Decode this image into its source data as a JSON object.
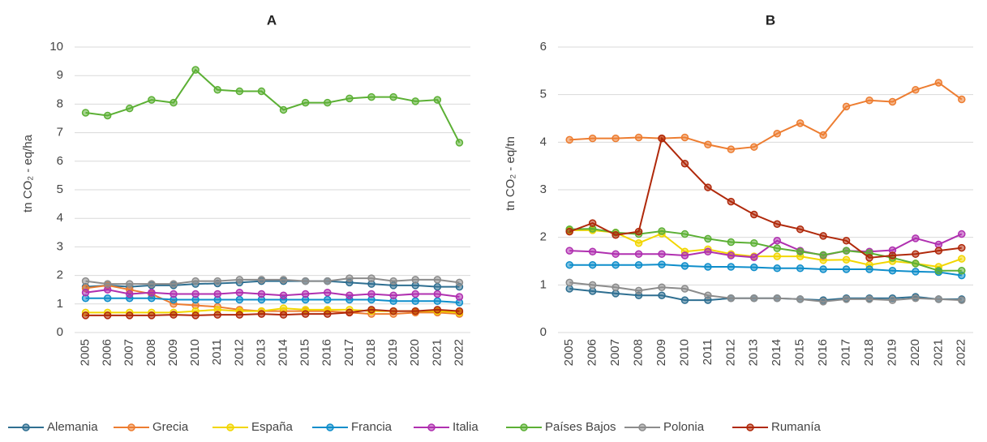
{
  "chart_data": [
    {
      "type": "line",
      "title": "A",
      "y_label": "tn CO₂ - eq/ha",
      "categories": [
        "2005",
        "2006",
        "2007",
        "2008",
        "2009",
        "2010",
        "2011",
        "2012",
        "2013",
        "2014",
        "2015",
        "2016",
        "2017",
        "2018",
        "2019",
        "2020",
        "2021",
        "2022"
      ],
      "ylim": [
        0,
        10
      ],
      "yticks": [
        0,
        1,
        2,
        3,
        4,
        5,
        6,
        7,
        8,
        9,
        10
      ],
      "grid": true,
      "series": [
        {
          "name": "Alemania",
          "color": "#2f6f91",
          "values": [
            1.6,
            1.65,
            1.6,
            1.65,
            1.65,
            1.7,
            1.72,
            1.75,
            1.8,
            1.8,
            1.8,
            1.8,
            1.75,
            1.7,
            1.65,
            1.65,
            1.6,
            1.6
          ]
        },
        {
          "name": "Grecia",
          "color": "#ed7d31",
          "values": [
            1.55,
            1.65,
            1.5,
            1.35,
            1.0,
            0.95,
            0.9,
            0.8,
            0.75,
            0.75,
            0.75,
            0.75,
            0.7,
            0.65,
            0.65,
            0.7,
            0.7,
            0.65
          ]
        },
        {
          "name": "España",
          "color": "#f2d600",
          "values": [
            0.7,
            0.7,
            0.7,
            0.7,
            0.7,
            0.75,
            0.8,
            0.75,
            0.75,
            0.85,
            0.8,
            0.8,
            0.8,
            0.75,
            0.75,
            0.75,
            0.75,
            0.7
          ]
        },
        {
          "name": "Francia",
          "color": "#0f8ecb",
          "values": [
            1.2,
            1.2,
            1.2,
            1.2,
            1.15,
            1.15,
            1.15,
            1.15,
            1.15,
            1.15,
            1.15,
            1.15,
            1.15,
            1.15,
            1.1,
            1.1,
            1.1,
            1.05
          ]
        },
        {
          "name": "Italia",
          "color": "#b030b0",
          "values": [
            1.4,
            1.5,
            1.35,
            1.4,
            1.35,
            1.35,
            1.35,
            1.4,
            1.35,
            1.3,
            1.35,
            1.4,
            1.3,
            1.35,
            1.3,
            1.35,
            1.35,
            1.25
          ]
        },
        {
          "name": "Países Bajos",
          "color": "#5cb035",
          "values": [
            7.7,
            7.6,
            7.85,
            8.15,
            8.05,
            9.2,
            8.5,
            8.45,
            8.45,
            7.8,
            8.05,
            8.05,
            8.2,
            8.25,
            8.25,
            8.1,
            8.15,
            6.65
          ]
        },
        {
          "name": "Polonia",
          "color": "#8c8c8c",
          "values": [
            1.8,
            1.7,
            1.7,
            1.7,
            1.7,
            1.8,
            1.8,
            1.85,
            1.85,
            1.85,
            1.8,
            1.8,
            1.9,
            1.9,
            1.8,
            1.85,
            1.85,
            1.75
          ]
        },
        {
          "name": "Rumanía",
          "color": "#b0290b",
          "values": [
            0.6,
            0.6,
            0.6,
            0.6,
            0.62,
            0.6,
            0.62,
            0.62,
            0.65,
            0.62,
            0.65,
            0.65,
            0.7,
            0.8,
            0.75,
            0.75,
            0.8,
            0.75
          ]
        }
      ]
    },
    {
      "type": "line",
      "title": "B",
      "y_label": "tn CO₂ - eq/tn",
      "categories": [
        "2005",
        "2006",
        "2007",
        "2008",
        "2009",
        "2010",
        "2011",
        "2012",
        "2013",
        "2014",
        "2015",
        "2016",
        "2017",
        "2018",
        "2019",
        "2020",
        "2021",
        "2022"
      ],
      "ylim": [
        0,
        6
      ],
      "yticks": [
        0,
        1,
        2,
        3,
        4,
        5,
        6
      ],
      "grid": true,
      "series": [
        {
          "name": "Alemania",
          "color": "#2f6f91",
          "values": [
            0.92,
            0.87,
            0.82,
            0.78,
            0.78,
            0.68,
            0.68,
            0.72,
            0.72,
            0.72,
            0.7,
            0.68,
            0.72,
            0.72,
            0.72,
            0.75,
            0.7,
            0.7
          ]
        },
        {
          "name": "Grecia",
          "color": "#ed7d31",
          "values": [
            4.05,
            4.08,
            4.08,
            4.1,
            4.08,
            4.1,
            3.95,
            3.85,
            3.9,
            4.18,
            4.4,
            4.15,
            4.75,
            4.88,
            4.85,
            5.1,
            5.25,
            4.9
          ]
        },
        {
          "name": "España",
          "color": "#f2d600",
          "values": [
            2.15,
            2.15,
            2.1,
            1.88,
            2.08,
            1.7,
            1.75,
            1.65,
            1.6,
            1.6,
            1.6,
            1.52,
            1.53,
            1.42,
            1.5,
            1.45,
            1.38,
            1.55
          ]
        },
        {
          "name": "Francia",
          "color": "#0f8ecb",
          "values": [
            1.42,
            1.42,
            1.42,
            1.42,
            1.43,
            1.4,
            1.38,
            1.38,
            1.37,
            1.35,
            1.35,
            1.33,
            1.33,
            1.33,
            1.3,
            1.28,
            1.27,
            1.2
          ]
        },
        {
          "name": "Italia",
          "color": "#b030b0",
          "values": [
            1.72,
            1.7,
            1.65,
            1.65,
            1.65,
            1.62,
            1.7,
            1.62,
            1.58,
            1.93,
            1.72,
            1.62,
            1.72,
            1.7,
            1.73,
            1.98,
            1.85,
            2.07
          ]
        },
        {
          "name": "Países Bajos",
          "color": "#5cb035",
          "values": [
            2.17,
            2.18,
            2.1,
            2.07,
            2.13,
            2.07,
            1.97,
            1.9,
            1.88,
            1.77,
            1.7,
            1.63,
            1.72,
            1.67,
            1.57,
            1.45,
            1.3,
            1.3
          ]
        },
        {
          "name": "Polonia",
          "color": "#8c8c8c",
          "values": [
            1.05,
            1.0,
            0.95,
            0.88,
            0.95,
            0.92,
            0.78,
            0.72,
            0.72,
            0.72,
            0.7,
            0.65,
            0.7,
            0.7,
            0.68,
            0.72,
            0.7,
            0.68
          ]
        },
        {
          "name": "Rumanía",
          "color": "#b0290b",
          "values": [
            2.12,
            2.3,
            2.05,
            2.12,
            4.08,
            3.55,
            3.05,
            2.75,
            2.48,
            2.28,
            2.17,
            2.03,
            1.93,
            1.57,
            1.62,
            1.65,
            1.72,
            1.78
          ]
        }
      ]
    }
  ]
}
